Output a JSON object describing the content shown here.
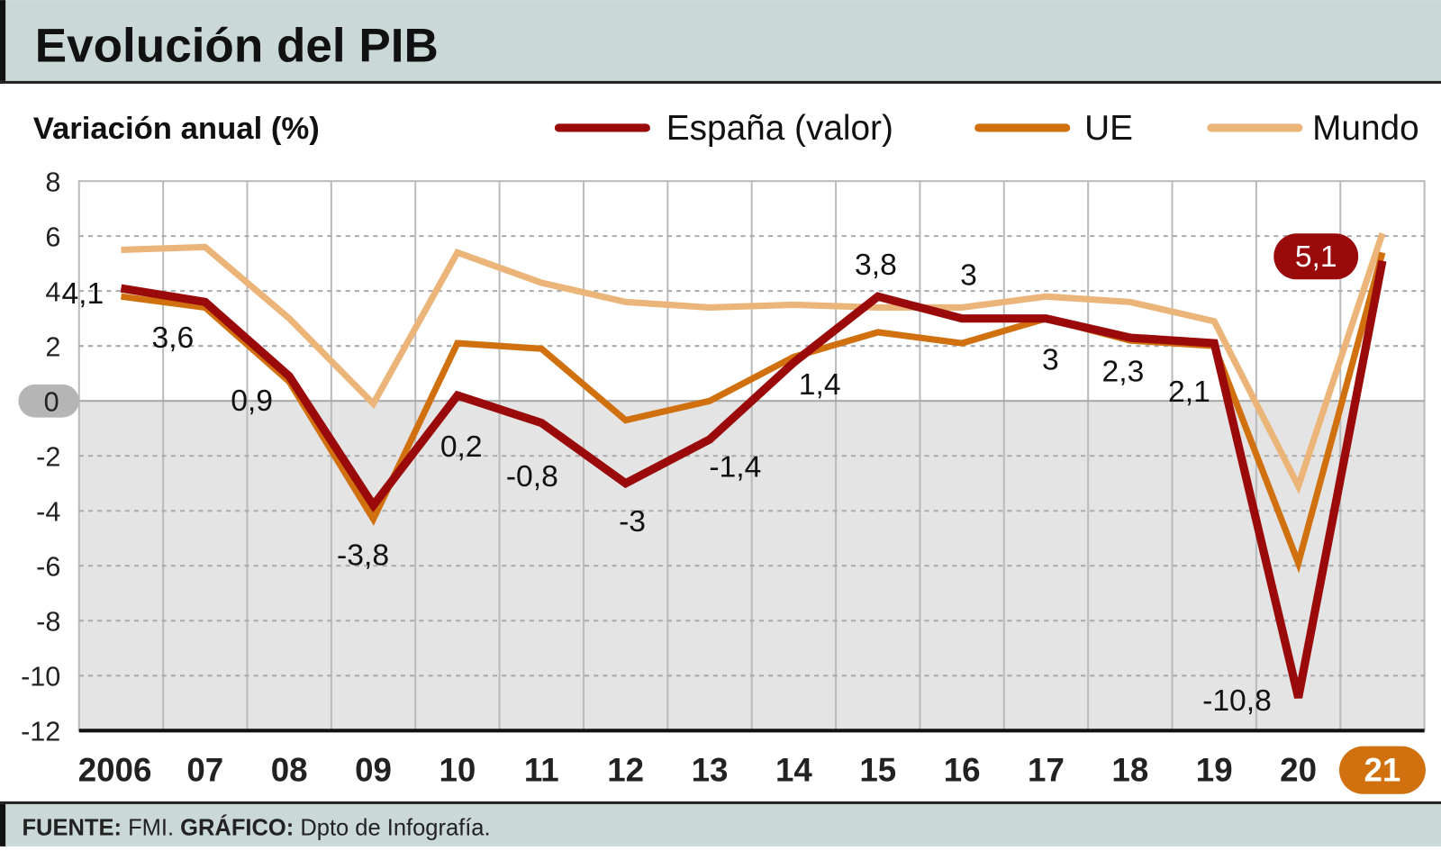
{
  "header": {
    "title": "Evolución del PIB"
  },
  "footer": {
    "source_label": "FUENTE:",
    "source_value": "FMI.",
    "graphic_label": "GRÁFICO:",
    "graphic_value": "Dpto de Infografía."
  },
  "colors": {
    "espana": "#9b0a0a",
    "ue": "#d0700f",
    "mundo": "#ebb57a",
    "header_bg": "#cbd8d8",
    "negative_area": "#e4e4e4"
  },
  "chart_data": {
    "type": "line",
    "ylabel": "Variación anual (%)",
    "ylim": [
      -12,
      8
    ],
    "yticks": [
      "8",
      "6",
      "4",
      "2",
      "0",
      "-2",
      "-4",
      "-6",
      "-8",
      "-10",
      "-12"
    ],
    "grid": true,
    "legend_position": "top",
    "categories": [
      "2006",
      "07",
      "08",
      "09",
      "10",
      "11",
      "12",
      "13",
      "14",
      "15",
      "16",
      "17",
      "18",
      "19",
      "20",
      "21"
    ],
    "highlight_category": "21",
    "series": [
      {
        "name": "España (valor)",
        "color": "#9b0a0a",
        "values": [
          4.1,
          3.6,
          0.9,
          -3.8,
          0.2,
          -0.8,
          -3,
          -1.4,
          1.4,
          3.8,
          3,
          3,
          2.3,
          2.1,
          -10.8,
          5.1
        ],
        "labels": [
          "4,1",
          "3,6",
          "0,9",
          "-3,8",
          "0,2",
          "-0,8",
          "-3",
          "-1,4",
          "1,4",
          "3,8",
          "3",
          "3",
          "2,3",
          "2,1",
          "-10,8",
          "5,1"
        ]
      },
      {
        "name": "UE",
        "color": "#d0700f",
        "values": [
          3.8,
          3.4,
          0.7,
          -4.3,
          2.1,
          1.9,
          -0.7,
          0.0,
          1.6,
          2.5,
          2.1,
          3.0,
          2.2,
          2.0,
          -5.9,
          5.4
        ]
      },
      {
        "name": "Mundo",
        "color": "#ebb57a",
        "values": [
          5.5,
          5.6,
          3.0,
          -0.1,
          5.4,
          4.3,
          3.6,
          3.4,
          3.5,
          3.4,
          3.4,
          3.8,
          3.6,
          2.9,
          -3.1,
          6.1
        ]
      }
    ]
  }
}
